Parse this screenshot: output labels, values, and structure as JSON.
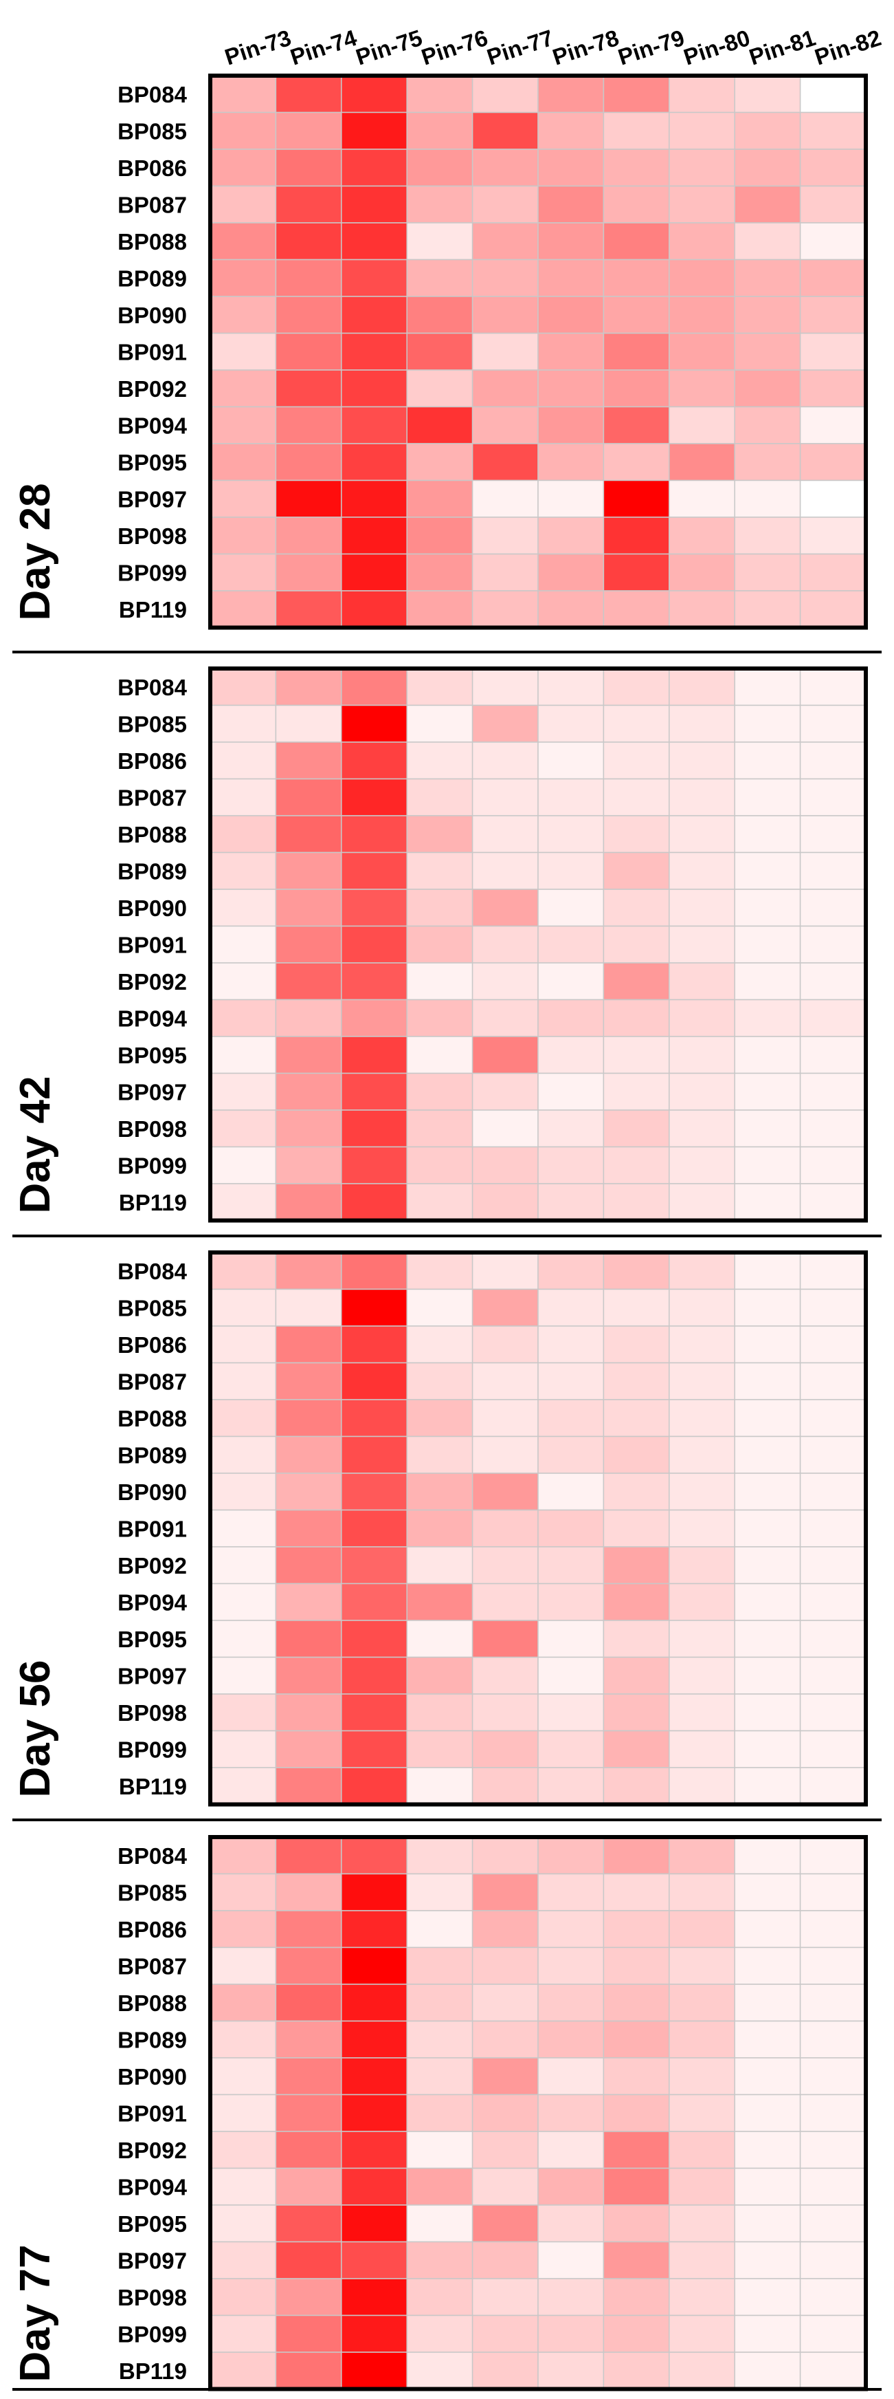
{
  "chart_data": {
    "type": "heatmap",
    "columns": [
      "Pin-73",
      "Pin-74",
      "Pin-75",
      "Pin-76",
      "Pin-77",
      "Pin-78",
      "Pin-79",
      "Pin-80",
      "Pin-81",
      "Pin-82"
    ],
    "rows": [
      "BP084",
      "BP085",
      "BP086",
      "BP087",
      "BP088",
      "BP089",
      "BP090",
      "BP091",
      "BP092",
      "BP094",
      "BP095",
      "BP097",
      "BP098",
      "BP099",
      "BP119"
    ],
    "color_scale": {
      "low": "#ffffff",
      "high": "#ff0000"
    },
    "panels": [
      {
        "label": "Day 28",
        "values": [
          [
            0.3,
            0.7,
            0.8,
            0.3,
            0.2,
            0.4,
            0.45,
            0.2,
            0.15,
            0.0
          ],
          [
            0.35,
            0.4,
            0.9,
            0.35,
            0.7,
            0.3,
            0.2,
            0.2,
            0.25,
            0.2
          ],
          [
            0.35,
            0.55,
            0.75,
            0.4,
            0.35,
            0.35,
            0.3,
            0.25,
            0.3,
            0.25
          ],
          [
            0.25,
            0.7,
            0.8,
            0.3,
            0.25,
            0.45,
            0.3,
            0.25,
            0.4,
            0.2
          ],
          [
            0.45,
            0.75,
            0.8,
            0.1,
            0.35,
            0.4,
            0.5,
            0.3,
            0.15,
            0.05
          ],
          [
            0.4,
            0.5,
            0.7,
            0.3,
            0.3,
            0.35,
            0.35,
            0.35,
            0.3,
            0.3
          ],
          [
            0.3,
            0.5,
            0.75,
            0.5,
            0.35,
            0.4,
            0.35,
            0.35,
            0.3,
            0.25
          ],
          [
            0.15,
            0.55,
            0.75,
            0.6,
            0.15,
            0.35,
            0.5,
            0.35,
            0.3,
            0.15
          ],
          [
            0.3,
            0.7,
            0.75,
            0.2,
            0.35,
            0.35,
            0.4,
            0.3,
            0.35,
            0.25
          ],
          [
            0.3,
            0.5,
            0.7,
            0.8,
            0.3,
            0.4,
            0.6,
            0.15,
            0.25,
            0.05
          ],
          [
            0.35,
            0.5,
            0.75,
            0.3,
            0.7,
            0.3,
            0.25,
            0.45,
            0.25,
            0.25
          ],
          [
            0.25,
            0.95,
            0.9,
            0.4,
            0.05,
            0.05,
            1.0,
            0.05,
            0.05,
            0.0
          ],
          [
            0.3,
            0.4,
            0.9,
            0.45,
            0.15,
            0.25,
            0.8,
            0.25,
            0.15,
            0.1
          ],
          [
            0.25,
            0.4,
            0.9,
            0.4,
            0.2,
            0.35,
            0.75,
            0.3,
            0.2,
            0.2
          ],
          [
            0.3,
            0.65,
            0.8,
            0.35,
            0.25,
            0.3,
            0.3,
            0.25,
            0.2,
            0.2
          ]
        ]
      },
      {
        "label": "Day 42",
        "values": [
          [
            0.2,
            0.35,
            0.5,
            0.15,
            0.1,
            0.1,
            0.15,
            0.15,
            0.05,
            0.05
          ],
          [
            0.1,
            0.1,
            1.0,
            0.05,
            0.3,
            0.1,
            0.1,
            0.1,
            0.05,
            0.05
          ],
          [
            0.1,
            0.45,
            0.75,
            0.1,
            0.1,
            0.05,
            0.1,
            0.1,
            0.05,
            0.05
          ],
          [
            0.1,
            0.55,
            0.85,
            0.15,
            0.1,
            0.1,
            0.1,
            0.1,
            0.05,
            0.05
          ],
          [
            0.2,
            0.6,
            0.7,
            0.3,
            0.1,
            0.1,
            0.15,
            0.1,
            0.05,
            0.05
          ],
          [
            0.15,
            0.4,
            0.7,
            0.15,
            0.1,
            0.1,
            0.25,
            0.1,
            0.05,
            0.05
          ],
          [
            0.1,
            0.4,
            0.65,
            0.2,
            0.35,
            0.05,
            0.15,
            0.1,
            0.05,
            0.05
          ],
          [
            0.05,
            0.5,
            0.7,
            0.25,
            0.15,
            0.15,
            0.15,
            0.1,
            0.05,
            0.05
          ],
          [
            0.05,
            0.6,
            0.65,
            0.05,
            0.1,
            0.05,
            0.4,
            0.15,
            0.05,
            0.05
          ],
          [
            0.2,
            0.25,
            0.4,
            0.25,
            0.15,
            0.2,
            0.2,
            0.15,
            0.1,
            0.1
          ],
          [
            0.05,
            0.45,
            0.75,
            0.05,
            0.5,
            0.1,
            0.1,
            0.1,
            0.05,
            0.05
          ],
          [
            0.1,
            0.4,
            0.7,
            0.2,
            0.15,
            0.05,
            0.1,
            0.1,
            0.05,
            0.05
          ],
          [
            0.15,
            0.35,
            0.75,
            0.2,
            0.05,
            0.1,
            0.2,
            0.1,
            0.05,
            0.05
          ],
          [
            0.05,
            0.3,
            0.7,
            0.2,
            0.2,
            0.15,
            0.15,
            0.1,
            0.05,
            0.05
          ],
          [
            0.1,
            0.45,
            0.75,
            0.15,
            0.2,
            0.15,
            0.15,
            0.1,
            0.05,
            0.05
          ]
        ]
      },
      {
        "label": "Day 56",
        "values": [
          [
            0.2,
            0.4,
            0.55,
            0.15,
            0.1,
            0.2,
            0.25,
            0.15,
            0.05,
            0.05
          ],
          [
            0.1,
            0.1,
            1.0,
            0.05,
            0.35,
            0.1,
            0.1,
            0.1,
            0.05,
            0.05
          ],
          [
            0.1,
            0.5,
            0.75,
            0.1,
            0.15,
            0.1,
            0.15,
            0.1,
            0.05,
            0.05
          ],
          [
            0.1,
            0.45,
            0.8,
            0.15,
            0.1,
            0.1,
            0.15,
            0.1,
            0.05,
            0.05
          ],
          [
            0.15,
            0.5,
            0.7,
            0.25,
            0.1,
            0.15,
            0.15,
            0.1,
            0.05,
            0.05
          ],
          [
            0.1,
            0.35,
            0.7,
            0.15,
            0.1,
            0.15,
            0.2,
            0.1,
            0.05,
            0.05
          ],
          [
            0.1,
            0.3,
            0.65,
            0.3,
            0.4,
            0.05,
            0.15,
            0.1,
            0.05,
            0.05
          ],
          [
            0.05,
            0.45,
            0.7,
            0.3,
            0.2,
            0.2,
            0.15,
            0.1,
            0.05,
            0.05
          ],
          [
            0.05,
            0.5,
            0.6,
            0.1,
            0.15,
            0.15,
            0.35,
            0.15,
            0.05,
            0.05
          ],
          [
            0.05,
            0.3,
            0.6,
            0.45,
            0.15,
            0.15,
            0.35,
            0.15,
            0.05,
            0.05
          ],
          [
            0.05,
            0.55,
            0.7,
            0.05,
            0.5,
            0.05,
            0.15,
            0.1,
            0.05,
            0.05
          ],
          [
            0.05,
            0.45,
            0.7,
            0.3,
            0.15,
            0.05,
            0.25,
            0.1,
            0.05,
            0.05
          ],
          [
            0.15,
            0.35,
            0.7,
            0.2,
            0.15,
            0.1,
            0.25,
            0.1,
            0.05,
            0.05
          ],
          [
            0.1,
            0.35,
            0.7,
            0.2,
            0.25,
            0.15,
            0.3,
            0.1,
            0.05,
            0.05
          ],
          [
            0.1,
            0.5,
            0.75,
            0.05,
            0.2,
            0.15,
            0.2,
            0.1,
            0.05,
            0.05
          ]
        ]
      },
      {
        "label": "Day 77",
        "values": [
          [
            0.25,
            0.6,
            0.65,
            0.15,
            0.2,
            0.25,
            0.35,
            0.25,
            0.05,
            0.05
          ],
          [
            0.2,
            0.3,
            0.95,
            0.1,
            0.4,
            0.15,
            0.15,
            0.15,
            0.05,
            0.05
          ],
          [
            0.25,
            0.5,
            0.85,
            0.05,
            0.3,
            0.15,
            0.2,
            0.2,
            0.05,
            0.05
          ],
          [
            0.1,
            0.5,
            1.0,
            0.2,
            0.2,
            0.15,
            0.2,
            0.15,
            0.05,
            0.05
          ],
          [
            0.3,
            0.6,
            0.9,
            0.2,
            0.15,
            0.2,
            0.25,
            0.2,
            0.05,
            0.05
          ],
          [
            0.15,
            0.4,
            0.9,
            0.15,
            0.2,
            0.25,
            0.3,
            0.2,
            0.05,
            0.05
          ],
          [
            0.1,
            0.5,
            0.9,
            0.15,
            0.4,
            0.1,
            0.2,
            0.15,
            0.05,
            0.05
          ],
          [
            0.1,
            0.5,
            0.9,
            0.2,
            0.25,
            0.2,
            0.25,
            0.15,
            0.05,
            0.05
          ],
          [
            0.15,
            0.55,
            0.8,
            0.05,
            0.2,
            0.1,
            0.5,
            0.2,
            0.05,
            0.05
          ],
          [
            0.1,
            0.35,
            0.8,
            0.35,
            0.15,
            0.3,
            0.5,
            0.2,
            0.05,
            0.05
          ],
          [
            0.1,
            0.65,
            0.95,
            0.05,
            0.45,
            0.15,
            0.25,
            0.15,
            0.05,
            0.05
          ],
          [
            0.15,
            0.7,
            0.7,
            0.25,
            0.25,
            0.05,
            0.4,
            0.15,
            0.05,
            0.05
          ],
          [
            0.2,
            0.4,
            0.95,
            0.2,
            0.15,
            0.15,
            0.25,
            0.15,
            0.05,
            0.05
          ],
          [
            0.15,
            0.55,
            0.9,
            0.15,
            0.2,
            0.2,
            0.25,
            0.15,
            0.05,
            0.05
          ],
          [
            0.2,
            0.55,
            1.0,
            0.1,
            0.2,
            0.15,
            0.2,
            0.15,
            0.05,
            0.05
          ]
        ]
      }
    ]
  }
}
